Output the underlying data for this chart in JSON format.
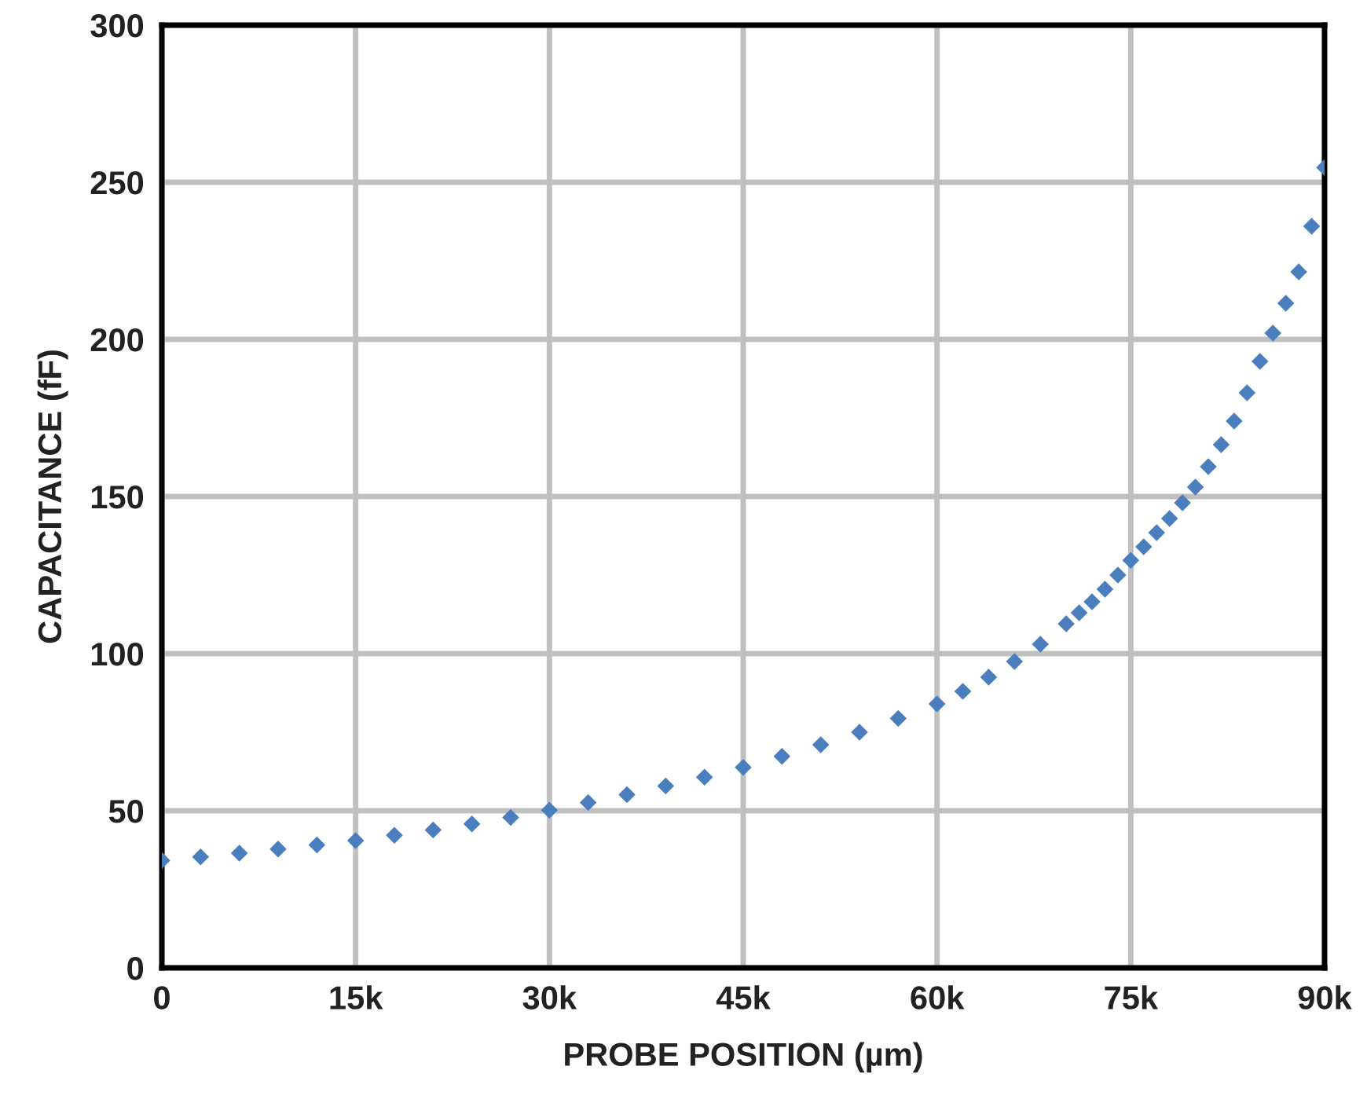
{
  "chart_data": {
    "type": "scatter",
    "xlabel": "PROBE POSITION (µm)",
    "ylabel": "CAPACITANCE (fF)",
    "x": [
      0,
      3000,
      6000,
      9000,
      12000,
      15000,
      18000,
      21000,
      24000,
      27000,
      30000,
      33000,
      36000,
      39000,
      42000,
      45000,
      48000,
      51000,
      54000,
      57000,
      60000,
      62000,
      64000,
      66000,
      68000,
      70000,
      71000,
      72000,
      73000,
      74000,
      75000,
      76000,
      77000,
      78000,
      79000,
      80000,
      81000,
      82000,
      83000,
      84000,
      85000,
      86000,
      87000,
      88000,
      89000,
      90000
    ],
    "series": [
      {
        "color": "#4a7ebf",
        "values": [
          34.2,
          35.3,
          36.5,
          37.8,
          39.1,
          40.5,
          42.2,
          43.9,
          45.8,
          47.9,
          50.2,
          52.6,
          55.1,
          57.9,
          60.7,
          63.8,
          67.3,
          71.0,
          75.0,
          79.4,
          84.0,
          88.0,
          92.5,
          97.5,
          103,
          109.5,
          113,
          116.5,
          120.5,
          125,
          129.7,
          134,
          138.5,
          143,
          148,
          153,
          159.5,
          166.5,
          174,
          183,
          193,
          202,
          211.5,
          221.5,
          236,
          254.7
        ]
      }
    ],
    "xlim": [
      0,
      90000
    ],
    "xticks": [
      0,
      {
        "value": 15000,
        "label": "15k"
      },
      {
        "value": 30000,
        "label": "30k"
      },
      {
        "value": 45000,
        "label": "45k"
      },
      {
        "value": 60000,
        "label": "60k"
      },
      {
        "value": 75000,
        "label": "75k"
      },
      {
        "value": 90000,
        "label": "90k"
      }
    ],
    "ylim": [
      0,
      300
    ],
    "yticks": [
      0,
      50,
      100,
      150,
      200,
      250,
      300
    ],
    "grid": true,
    "marker": "diamond"
  }
}
